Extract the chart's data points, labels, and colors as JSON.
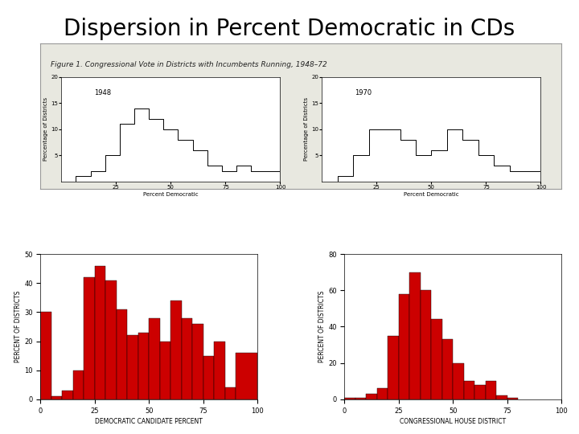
{
  "title": "Dispersion in Percent Democratic in CDs",
  "title_fontsize": 20,
  "background_color": "#ffffff",
  "left_hist": {
    "values": [
      30,
      1,
      3,
      10,
      42,
      46,
      41,
      31,
      22,
      23,
      28,
      20,
      34,
      28,
      26,
      15,
      20,
      4,
      16
    ],
    "bin_edges": [
      0,
      5,
      10,
      15,
      20,
      25,
      30,
      35,
      40,
      45,
      50,
      55,
      60,
      65,
      70,
      75,
      80,
      85,
      90,
      100
    ],
    "xlabel": "DEMOCRATIC CANDIDATE PERCENT",
    "ylabel": "PERCENT OF DISTRICTS",
    "xlim": [
      0,
      100
    ],
    "ylim": [
      0,
      50
    ],
    "yticks": [
      0,
      10,
      20,
      30,
      40,
      50
    ],
    "xticks": [
      0,
      25,
      50,
      75,
      100
    ],
    "bar_color": "#cc0000"
  },
  "right_hist": {
    "values": [
      1,
      1,
      3,
      6,
      35,
      58,
      70,
      60,
      44,
      33,
      20,
      10,
      8,
      10,
      2,
      1
    ],
    "bin_edges": [
      0,
      5,
      10,
      15,
      20,
      25,
      30,
      35,
      40,
      45,
      50,
      55,
      60,
      65,
      70,
      75,
      80,
      100
    ],
    "xlabel": "CONGRESSIONAL HOUSE DISTRICT",
    "ylabel": "PERCENT OF DISTRICTS",
    "xlim": [
      0,
      100
    ],
    "ylim": [
      0,
      80
    ],
    "yticks": [
      0,
      20,
      40,
      60,
      80
    ],
    "xticks": [
      0,
      25,
      50,
      75,
      100
    ],
    "bar_color": "#cc0000"
  },
  "embedded_image": {
    "caption": "Figure 1. Congressional Vote in Districts with Incumbents Running, 1948–72",
    "exists": true
  }
}
